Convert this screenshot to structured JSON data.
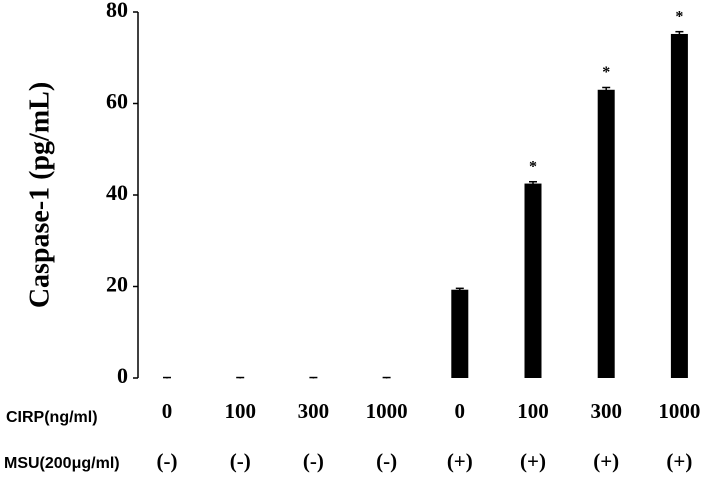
{
  "chart_data": {
    "type": "bar",
    "y_label": "Caspase-1 (pg/mL)",
    "category_label": "CIRP(ng/ml)",
    "categories": [
      "0",
      "100",
      "300",
      "1000",
      "0",
      "100",
      "300",
      "1000"
    ],
    "second_row_label": "MSU(200μg/ml)",
    "second_row": [
      "(-)",
      "(-)",
      "(-)",
      "(-)",
      "(+)",
      "(+)",
      "(+)",
      "(+)"
    ],
    "values": [
      0,
      0,
      0,
      0,
      19.3,
      42.5,
      63,
      75.2
    ],
    "errors": [
      0.1,
      0.1,
      0.1,
      0.1,
      0.3,
      0.4,
      0.5,
      0.5
    ],
    "significance": [
      null,
      null,
      null,
      null,
      null,
      "*",
      "*",
      "*"
    ],
    "color": "#000000",
    "ylim": [
      0,
      80
    ],
    "yticks": [
      0,
      20,
      40,
      60,
      80
    ],
    "grid": false
  }
}
